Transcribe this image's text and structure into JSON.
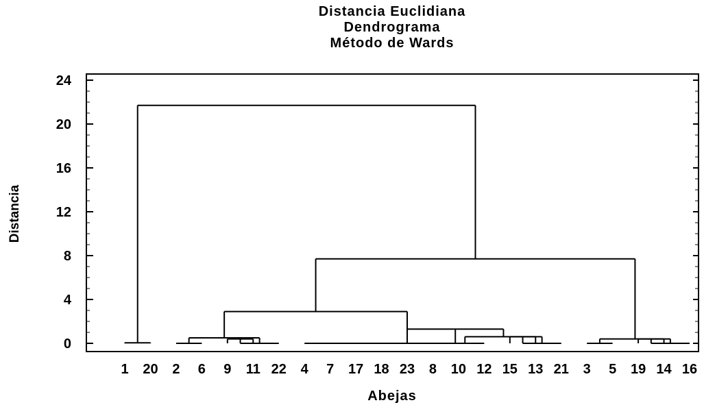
{
  "chart_data": {
    "type": "dendrogram",
    "title": [
      "Distancia Euclidiana",
      "Dendrograma",
      "Método de Wards"
    ],
    "xlabel": "Abejas",
    "ylabel": "Distancia",
    "y_ticks": [
      0,
      4,
      8,
      12,
      16,
      20,
      24
    ],
    "ylim": [
      -1,
      25
    ],
    "leaf_order": [
      "1",
      "20",
      "2",
      "6",
      "9",
      "11",
      "22",
      "4",
      "7",
      "17",
      "18",
      "23",
      "8",
      "10",
      "12",
      "15",
      "13",
      "21",
      "3",
      "5",
      "19",
      "14",
      "16"
    ],
    "merges": [
      {
        "left": "1",
        "right": "20",
        "height": 0.05,
        "id": "c1"
      },
      {
        "left": "2",
        "right": "6",
        "height": 0.0,
        "id": "c2"
      },
      {
        "left": "9",
        "right": "11",
        "height": 0.4,
        "id": "c3"
      },
      {
        "left": "c3",
        "right": "22",
        "height": 0.0,
        "id": "c4"
      },
      {
        "left": "c2",
        "right": "c4",
        "height": 0.5,
        "id": "c5"
      },
      {
        "left": "4",
        "right": "7",
        "height": 0.0,
        "id": "c6"
      },
      {
        "left": "c6",
        "right": "17",
        "height": 0.0,
        "id": "c7"
      },
      {
        "left": "c7",
        "right": "18",
        "height": 0.0,
        "id": "c8"
      },
      {
        "left": "8",
        "right": "10",
        "height": 0.0,
        "id": "c9"
      },
      {
        "left": "c9",
        "right": "12",
        "height": 0.0,
        "id": "c10"
      },
      {
        "left": "15",
        "right": "13",
        "height": 0.6,
        "id": "c11"
      },
      {
        "left": "c11",
        "right": "21",
        "height": 0.0,
        "id": "c12"
      },
      {
        "left": "c10",
        "right": "c12",
        "height": 0.6,
        "id": "c13"
      },
      {
        "left": "23",
        "right": "c13",
        "height": 1.3,
        "id": "c14"
      },
      {
        "left": "c8",
        "right": "c14",
        "height": 0.0,
        "id": "c15"
      },
      {
        "left": "c5",
        "right": "c15",
        "height": 2.9,
        "id": "c16"
      },
      {
        "left": "3",
        "right": "5",
        "height": 0.0,
        "id": "c17"
      },
      {
        "left": "19",
        "right": "14",
        "height": 0.4,
        "id": "c18"
      },
      {
        "left": "c18",
        "right": "16",
        "height": 0.0,
        "id": "c19"
      },
      {
        "left": "c17",
        "right": "c19",
        "height": 0.4,
        "id": "c20"
      },
      {
        "left": "c16",
        "right": "c20",
        "height": 7.7,
        "id": "c21"
      },
      {
        "left": "c1",
        "right": "c21",
        "height": 21.7,
        "id": "c22"
      }
    ]
  }
}
